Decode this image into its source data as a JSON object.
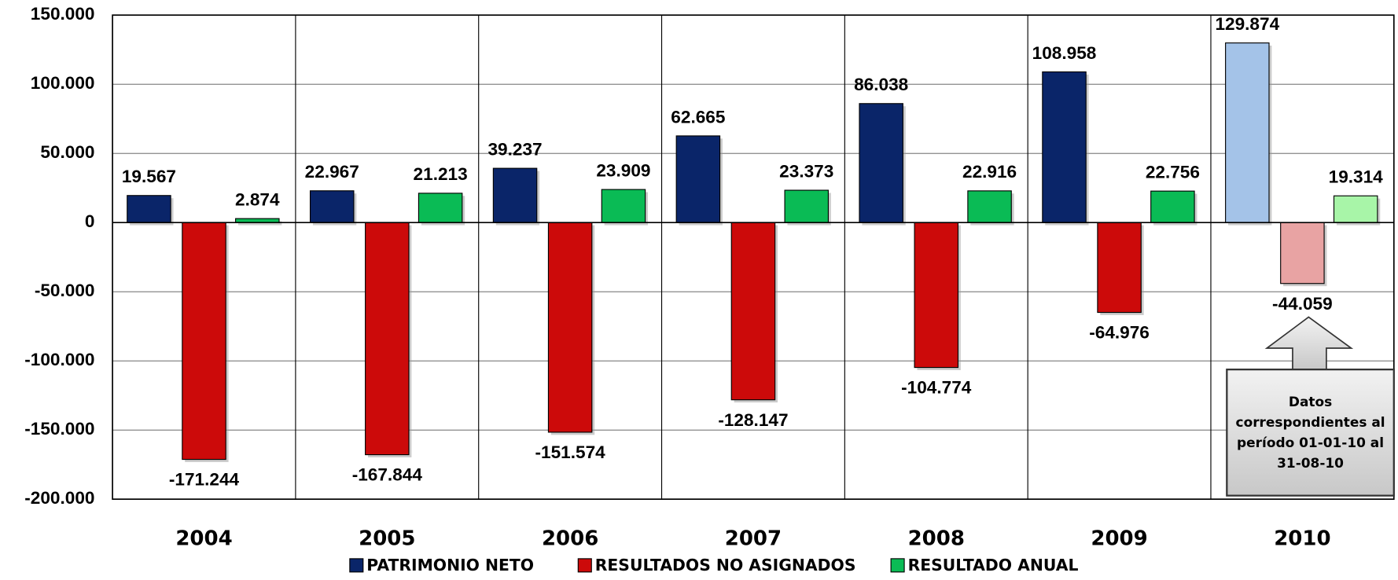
{
  "chart_data": {
    "type": "bar",
    "categories": [
      "2004",
      "2005",
      "2006",
      "2007",
      "2008",
      "2009",
      "2010"
    ],
    "series": [
      {
        "name": "PATRIMONIO NETO",
        "color": "#0a2569",
        "colors": [
          "#0a2569",
          "#0a2569",
          "#0a2569",
          "#0a2569",
          "#0a2569",
          "#0a2569",
          "#a4c3e8"
        ],
        "values": [
          19567,
          22967,
          39237,
          62665,
          86038,
          108958,
          129874
        ],
        "value_labels": [
          "19.567",
          "22.967",
          "39.237",
          "62.665",
          "86.038",
          "108.958",
          "129.874"
        ]
      },
      {
        "name": "RESULTADOS NO ASIGNADOS",
        "color": "#cc0a0a",
        "colors": [
          "#cc0a0a",
          "#cc0a0a",
          "#cc0a0a",
          "#cc0a0a",
          "#cc0a0a",
          "#cc0a0a",
          "#e8a3a3"
        ],
        "values": [
          -171244,
          -167844,
          -151574,
          -128147,
          -104774,
          -64976,
          -44059
        ],
        "value_labels": [
          "-171.244",
          "-167.844",
          "-151.574",
          "-128.147",
          "-104.774",
          "-64.976",
          "-44.059"
        ]
      },
      {
        "name": "RESULTADO ANUAL",
        "color": "#0abb55",
        "colors": [
          "#0abb55",
          "#0abb55",
          "#0abb55",
          "#0abb55",
          "#0abb55",
          "#0abb55",
          "#a8f5a8"
        ],
        "values": [
          2874,
          21213,
          23909,
          23373,
          22916,
          22756,
          19314
        ],
        "value_labels": [
          "2.874",
          "21.213",
          "23.909",
          "23.373",
          "22.916",
          "22.756",
          "19.314"
        ]
      }
    ],
    "ylim": [
      -200000,
      150000
    ],
    "yticks": [
      {
        "value": -200000,
        "label": "-200.000"
      },
      {
        "value": -150000,
        "label": "-150.000"
      },
      {
        "value": -100000,
        "label": "-100.000"
      },
      {
        "value": -50000,
        "label": "-50.000"
      },
      0,
      {
        "value": 50000,
        "label": "50.000"
      },
      {
        "value": 100000,
        "label": "100.000"
      },
      {
        "value": 150000,
        "label": "150.000"
      }
    ],
    "grid": true,
    "legend": "bottom",
    "annotation": [
      "Datos",
      "correspondientes al",
      "período 01-01-10 al",
      "31-08-10"
    ]
  }
}
